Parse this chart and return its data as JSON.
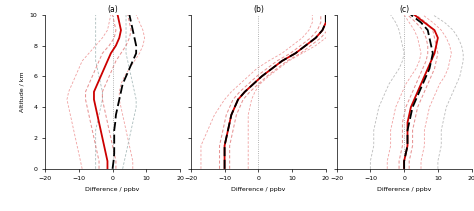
{
  "title_a": "(a)",
  "title_b": "(b)",
  "title_c": "(c)",
  "xlabel": "Difference / ppbv",
  "ylabel": "Altitude / km",
  "xlim": [
    -20,
    20
  ],
  "ylim": [
    0,
    10
  ],
  "xticks": [
    -20,
    -10,
    0,
    10,
    20
  ],
  "yticks": [
    0,
    2,
    4,
    6,
    8,
    10
  ],
  "alt": [
    0,
    0.5,
    1.0,
    1.5,
    2.0,
    2.5,
    3.0,
    3.5,
    4.0,
    4.5,
    5.0,
    5.5,
    6.0,
    6.5,
    7.0,
    7.5,
    8.0,
    8.5,
    9.0,
    9.5,
    10.0
  ],
  "panel_a": {
    "red_solid": [
      -1.5,
      -1.5,
      -2,
      -2.5,
      -3,
      -3.5,
      -4,
      -4.5,
      -5,
      -5.5,
      -5.5,
      -4.5,
      -3.5,
      -2.5,
      -1.5,
      -0.5,
      1,
      2,
      2.5,
      2,
      1.5
    ],
    "black_dashed": [
      0,
      0.3,
      0.5,
      0.5,
      0.5,
      0.5,
      0.8,
      1,
      1.5,
      2,
      2.5,
      3,
      4,
      5,
      6,
      7,
      7,
      6.5,
      6,
      5.5,
      5
    ],
    "red_dashed_in1": [
      -4,
      -4,
      -4.5,
      -5,
      -5.5,
      -6,
      -6.5,
      -7,
      -7.5,
      -8,
      -8,
      -7,
      -6,
      -5,
      -4,
      -3,
      -1,
      0.5,
      1,
      0.5,
      0
    ],
    "red_dashed_out1": [
      1,
      1,
      0.5,
      0,
      -0.5,
      -1,
      -1.5,
      -2,
      -2.5,
      -3,
      -3,
      -2,
      -1,
      0,
      1,
      2.5,
      4,
      5,
      5.5,
      5,
      4.5
    ],
    "pink_dashed1": [
      -9,
      -9.5,
      -10,
      -10.5,
      -11,
      -11.5,
      -12,
      -12.5,
      -13,
      -13.5,
      -13,
      -12,
      -11,
      -10,
      -9,
      -7,
      -5,
      -3,
      -1.5,
      -1,
      -0.5
    ],
    "pink_dashed2": [
      6,
      6,
      5.5,
      5,
      4.5,
      4,
      3.5,
      3,
      2.5,
      2,
      2,
      2.5,
      3.5,
      5,
      6.5,
      8,
      9,
      9.5,
      9,
      8,
      7
    ],
    "gray_dotted": [
      0,
      0,
      0,
      0,
      0,
      0,
      0,
      0,
      0,
      0,
      0,
      0,
      0,
      0,
      0,
      0,
      0,
      0,
      0,
      0,
      0
    ],
    "gray_dashed1": [
      3,
      3.5,
      4,
      4.5,
      5,
      5.5,
      6,
      6.5,
      7,
      7,
      6.5,
      6,
      5.5,
      5,
      4.5,
      4,
      4,
      4,
      4,
      4,
      4
    ],
    "gray_dashed2": [
      -5,
      -5,
      -5,
      -5,
      -5,
      -5,
      -4.5,
      -4,
      -3.5,
      -3,
      -3,
      -3.5,
      -4,
      -4.5,
      -5,
      -5,
      -5,
      -5,
      -5,
      -5,
      -5
    ]
  },
  "panel_b": {
    "red_solid": [
      -10,
      -10,
      -10,
      -10,
      -9.5,
      -9,
      -8.5,
      -8,
      -7,
      -6,
      -4,
      -1.5,
      1,
      4,
      7,
      11,
      14,
      17,
      19,
      20,
      20
    ],
    "black_dashed": [
      -10,
      -10,
      -10,
      -10,
      -9.5,
      -9,
      -8.5,
      -8,
      -7,
      -6,
      -4,
      -1.5,
      1,
      4,
      7,
      11,
      14,
      17,
      19,
      20,
      20
    ],
    "red_dashed_in1": [
      -11.5,
      -11.5,
      -11.5,
      -11.5,
      -11,
      -10.5,
      -10,
      -9.5,
      -8.5,
      -7.5,
      -5.5,
      -3,
      -0.5,
      2.5,
      5.5,
      9.5,
      12.5,
      15.5,
      17.5,
      18.5,
      18.5
    ],
    "red_dashed_out1": [
      -8.5,
      -8.5,
      -8.5,
      -8.5,
      -8,
      -7.5,
      -7,
      -6.5,
      -5.5,
      -4.5,
      -2.5,
      0,
      2.5,
      5.5,
      8.5,
      12.5,
      15.5,
      18.5,
      20.5,
      21.5,
      21.5
    ],
    "pink_dashed1": [
      -17,
      -17,
      -17,
      -17,
      -16,
      -15,
      -14,
      -13,
      -11.5,
      -10,
      -8,
      -5.5,
      -3,
      -0.5,
      3,
      7,
      10,
      13,
      15,
      16,
      16
    ],
    "pink_dashed2": [
      -3,
      -3,
      -3,
      -3,
      -3,
      -3,
      -3,
      -3,
      -2.5,
      -2,
      -1,
      0.5,
      3,
      6,
      9,
      13,
      17,
      20,
      22,
      23,
      23
    ],
    "gray_dotted": [
      0,
      0,
      0,
      0,
      0,
      0,
      0,
      0,
      0,
      0,
      0,
      0,
      0,
      0,
      0,
      0,
      0,
      0,
      0,
      0,
      0
    ]
  },
  "panel_c": {
    "red_solid": [
      0,
      0,
      0.5,
      1,
      1,
      1,
      1,
      1.5,
      2,
      3,
      4,
      5,
      6,
      7,
      8,
      9,
      9.5,
      10,
      9,
      6,
      3
    ],
    "black_dashed": [
      0,
      0,
      0.5,
      1,
      1,
      1,
      1.5,
      2,
      2.5,
      3.5,
      4.5,
      5.5,
      6.5,
      7.5,
      8,
      8.5,
      8,
      7.5,
      7,
      5,
      2
    ],
    "red_dashed_in1": [
      -1.5,
      -1.5,
      -1,
      -0.5,
      -0.5,
      -0.5,
      -0.5,
      0,
      0.5,
      1.5,
      2.5,
      3.5,
      4.5,
      5.5,
      6.5,
      7,
      7,
      6.5,
      5.5,
      3.5,
      1
    ],
    "red_dashed_out1": [
      1.5,
      1.5,
      2,
      2.5,
      2.5,
      2.5,
      3,
      3.5,
      4,
      5,
      6,
      7,
      8,
      9,
      9.5,
      10,
      9.5,
      9,
      8.5,
      6.5,
      3.5
    ],
    "pink_dashed1": [
      -5,
      -5,
      -4.5,
      -4,
      -4,
      -4,
      -3.5,
      -3,
      -2.5,
      -1.5,
      -0.5,
      0.5,
      2,
      3.5,
      4.5,
      5,
      4.5,
      4,
      3,
      1.5,
      0
    ],
    "pink_dashed2": [
      5,
      5,
      5.5,
      6,
      6,
      6,
      6.5,
      7,
      7.5,
      8.5,
      9.5,
      10.5,
      12,
      13,
      13.5,
      14,
      13.5,
      12.5,
      11,
      8.5,
      5.5
    ],
    "gray_dashed1": [
      -10,
      -10,
      -9.5,
      -9,
      -9,
      -9,
      -8.5,
      -8,
      -7.5,
      -6.5,
      -5.5,
      -4.5,
      -3,
      -1.5,
      -0.5,
      0,
      -0.5,
      -1,
      -1.5,
      -2.5,
      -4
    ],
    "gray_dashed2": [
      10,
      10,
      10.5,
      11,
      11,
      11,
      11.5,
      12,
      12.5,
      13.5,
      14.5,
      15.5,
      16.5,
      17,
      17.5,
      17.5,
      17,
      16,
      14.5,
      12,
      8.5
    ],
    "gray_dotted": [
      0,
      0,
      0,
      0,
      0,
      0,
      0,
      0,
      0,
      0,
      0,
      0,
      0,
      0,
      0,
      0,
      0,
      0,
      0,
      0,
      0
    ]
  },
  "color_red": "#cc0000",
  "color_red_alpha": "#dd6666",
  "color_pink": "#f0a0a0",
  "color_black": "#000000",
  "color_gray": "#999999",
  "color_gray_light": "#bbbbbb",
  "figsize": [
    4.74,
    2.11
  ],
  "dpi": 100
}
